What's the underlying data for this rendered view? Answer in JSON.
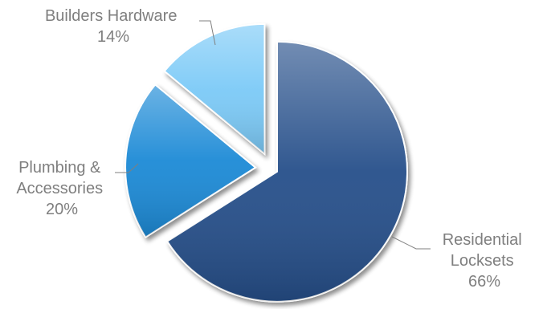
{
  "chart_data": {
    "type": "pie",
    "title": "",
    "slices": [
      {
        "label_lines": [
          "Residential",
          "Locksets"
        ],
        "value": 66,
        "value_label": "66%",
        "color": "#25508a"
      },
      {
        "label_lines": [
          "Plumbing &",
          "Accessories"
        ],
        "value": 20,
        "value_label": "20%",
        "color": "#1e8ad6"
      },
      {
        "label_lines": [
          "Builders Hardware"
        ],
        "value": 14,
        "value_label": "14%",
        "color": "#7ccaf7"
      }
    ],
    "start_angle_deg": 0,
    "direction": "clockwise",
    "exploded": true,
    "legend": "none"
  }
}
